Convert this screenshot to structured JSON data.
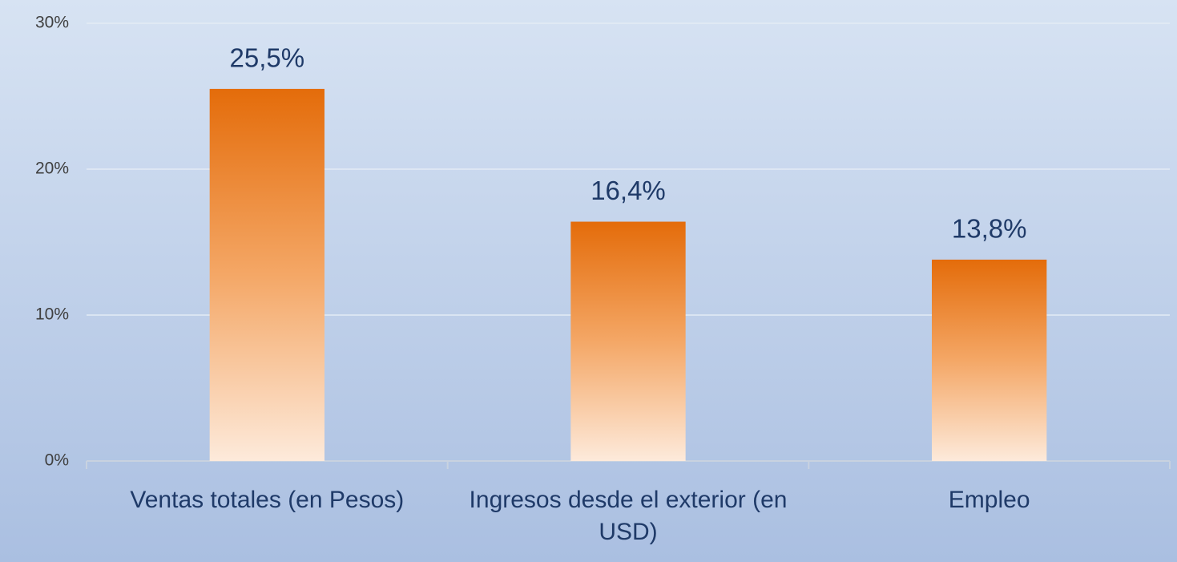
{
  "chart_data": {
    "type": "bar",
    "categories": [
      "Ventas totales (en Pesos)",
      "Ingresos desde el exterior (en USD)",
      "Empleo"
    ],
    "values": [
      25.5,
      16.4,
      13.8
    ],
    "value_labels": [
      "25,5%",
      "16,4%",
      "13,8%"
    ],
    "color": "#e46c0a",
    "ylim": [
      0,
      30
    ],
    "yticks": [
      {
        "value": 0,
        "label": "0%"
      },
      {
        "value": 10,
        "label": "10%"
      },
      {
        "value": 20,
        "label": "20%"
      },
      {
        "value": 30,
        "label": "30%"
      }
    ],
    "grid": true
  }
}
